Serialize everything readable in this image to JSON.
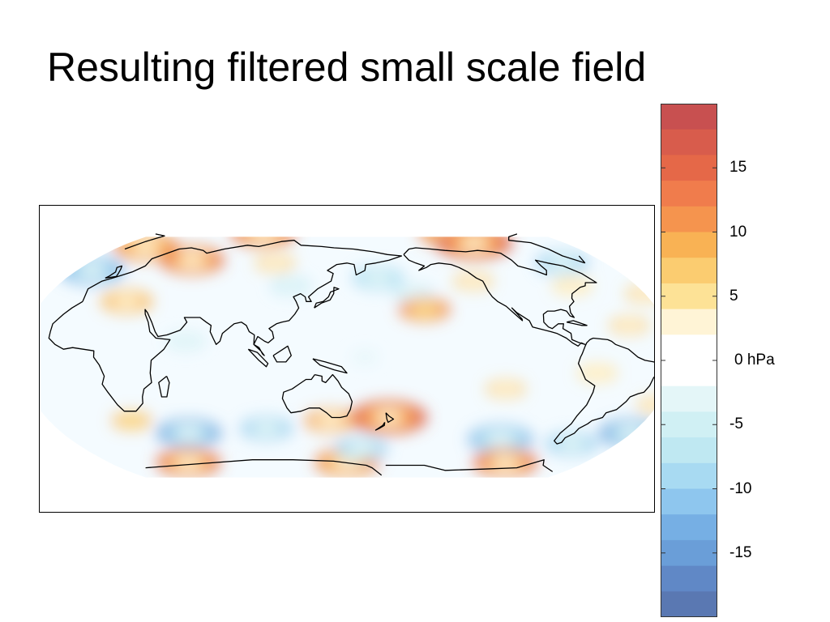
{
  "title": "Resulting filtered small scale field",
  "colorbar": {
    "ticks": [
      {
        "value": 15,
        "label": "15"
      },
      {
        "value": 10,
        "label": "10"
      },
      {
        "value": 5,
        "label": "5"
      },
      {
        "value": 0,
        "label": "0 hPa"
      },
      {
        "value": -5,
        "label": "-5"
      },
      {
        "value": -10,
        "label": "-10"
      },
      {
        "value": -15,
        "label": "-15"
      }
    ],
    "range": [
      -20,
      20
    ],
    "bands": [
      {
        "from": 18,
        "to": 20,
        "color": "#c85050"
      },
      {
        "from": 16,
        "to": 18,
        "color": "#d85c4c"
      },
      {
        "from": 14,
        "to": 16,
        "color": "#e56848"
      },
      {
        "from": 12,
        "to": 14,
        "color": "#f07c4c"
      },
      {
        "from": 10,
        "to": 12,
        "color": "#f5944e"
      },
      {
        "from": 8,
        "to": 10,
        "color": "#f9b254"
      },
      {
        "from": 6,
        "to": 8,
        "color": "#fbcc70"
      },
      {
        "from": 4,
        "to": 6,
        "color": "#fde296"
      },
      {
        "from": 2,
        "to": 4,
        "color": "#fff4d6"
      },
      {
        "from": -2,
        "to": 2,
        "color": "#ffffff"
      },
      {
        "from": -4,
        "to": -2,
        "color": "#e4f6f8"
      },
      {
        "from": -6,
        "to": -4,
        "color": "#d0f0f4"
      },
      {
        "from": -8,
        "to": -6,
        "color": "#bfe8f2"
      },
      {
        "from": -10,
        "to": -8,
        "color": "#a8daf2"
      },
      {
        "from": -12,
        "to": -10,
        "color": "#8ec6ee"
      },
      {
        "from": -14,
        "to": -12,
        "color": "#76afe4"
      },
      {
        "from": -16,
        "to": -14,
        "color": "#6a9ed8"
      },
      {
        "from": -18,
        "to": -16,
        "color": "#6088c6"
      },
      {
        "from": -20,
        "to": -18,
        "color": "#5a78b2"
      }
    ]
  },
  "map": {
    "projection": "robinson",
    "central_longitude": 150,
    "colors": {
      "ocean_base": "#f4fbff",
      "coastline": "#000000"
    },
    "anomalies": [
      {
        "lat": 84,
        "lon": 70,
        "value": 14
      },
      {
        "lat": 84,
        "lon": 250,
        "value": 13
      },
      {
        "lat": 75,
        "lon": 255,
        "value": 17
      },
      {
        "lat": 72,
        "lon": 350,
        "value": 13
      },
      {
        "lat": 62,
        "lon": 40,
        "value": 14
      },
      {
        "lat": 60,
        "lon": 100,
        "value": 7
      },
      {
        "lat": 45,
        "lon": 115,
        "value": -8
      },
      {
        "lat": 50,
        "lon": 170,
        "value": -10
      },
      {
        "lat": 40,
        "lon": 190,
        "value": -8
      },
      {
        "lat": 30,
        "lon": 195,
        "value": 12
      },
      {
        "lat": 48,
        "lon": 230,
        "value": 6
      },
      {
        "lat": 45,
        "lon": 290,
        "value": 5
      },
      {
        "lat": 60,
        "lon": 300,
        "value": -12
      },
      {
        "lat": 55,
        "lon": 340,
        "value": -14
      },
      {
        "lat": 40,
        "lon": 330,
        "value": 6
      },
      {
        "lat": 35,
        "lon": 20,
        "value": 9
      },
      {
        "lat": 10,
        "lon": 60,
        "value": -5
      },
      {
        "lat": -38,
        "lon": 175,
        "value": 17
      },
      {
        "lat": -40,
        "lon": 140,
        "value": 10
      },
      {
        "lat": -45,
        "lon": 100,
        "value": -12
      },
      {
        "lat": -48,
        "lon": 50,
        "value": -16
      },
      {
        "lat": -40,
        "lon": 20,
        "value": 8
      },
      {
        "lat": -52,
        "lon": 250,
        "value": -13
      },
      {
        "lat": -55,
        "lon": 300,
        "value": -12
      },
      {
        "lat": -48,
        "lon": 330,
        "value": -15
      },
      {
        "lat": -30,
        "lon": 330,
        "value": 7
      },
      {
        "lat": -20,
        "lon": 240,
        "value": 7
      },
      {
        "lat": -10,
        "lon": 290,
        "value": 5
      },
      {
        "lat": -68,
        "lon": 30,
        "value": 15
      },
      {
        "lat": -68,
        "lon": 150,
        "value": 13
      },
      {
        "lat": -68,
        "lon": 270,
        "value": 14
      },
      {
        "lat": -58,
        "lon": 160,
        "value": -11
      },
      {
        "lat": 20,
        "lon": 310,
        "value": 6
      },
      {
        "lat": 0,
        "lon": 160,
        "value": -3
      }
    ]
  }
}
